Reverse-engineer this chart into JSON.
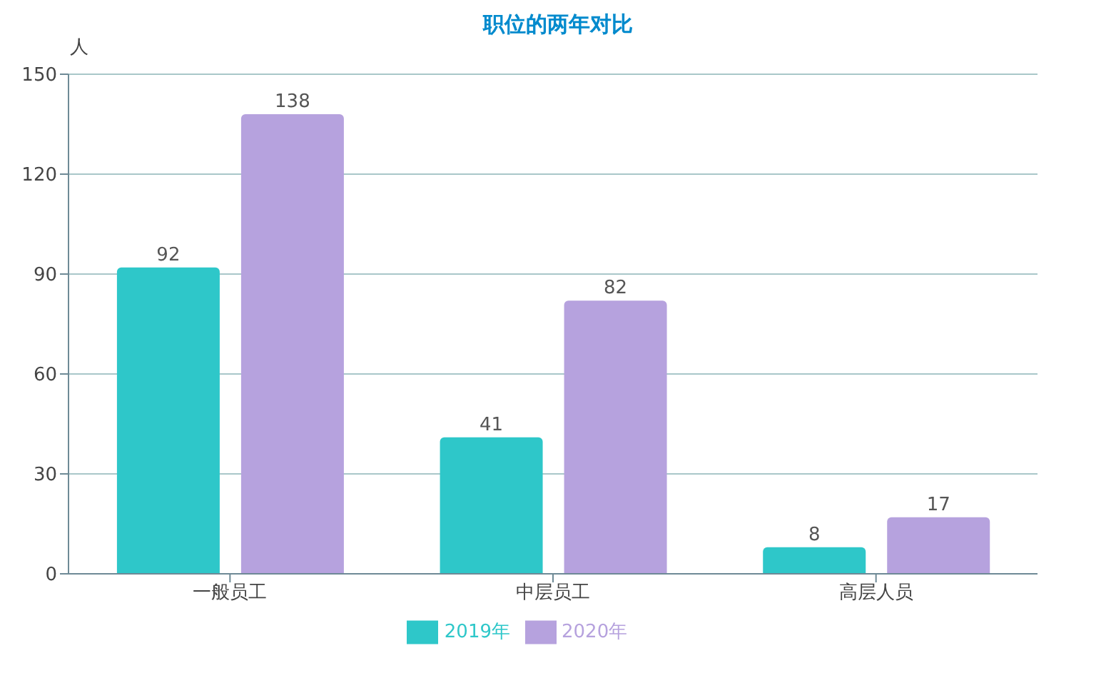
{
  "chart_data": {
    "type": "bar",
    "title": "职位的两年对比",
    "ylabel": "人",
    "categories": [
      "一般员工",
      "中层员工",
      "高层人员"
    ],
    "series": [
      {
        "name": "2019年",
        "color": "#2ec7c9",
        "values": [
          92,
          41,
          8
        ]
      },
      {
        "name": "2020年",
        "color": "#b6a2de",
        "values": [
          138,
          82,
          17
        ]
      }
    ],
    "ylim": [
      0,
      150
    ],
    "yticks": [
      0,
      30,
      60,
      90,
      120,
      150
    ],
    "grid": "y",
    "legend": "bottom",
    "data_labels": true
  }
}
